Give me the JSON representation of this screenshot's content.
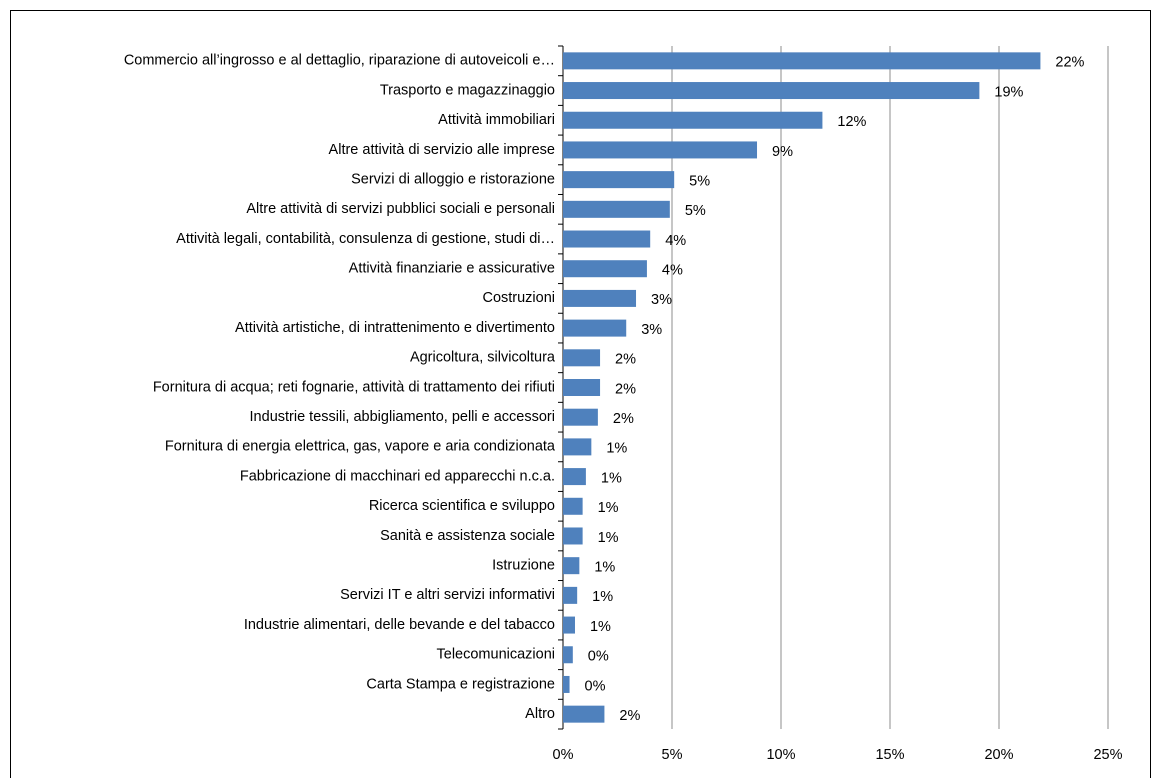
{
  "chart_data": {
    "type": "bar",
    "orientation": "horizontal",
    "categories": [
      "Commercio all’ingrosso e al dettaglio, riparazione di autoveicoli e…",
      "Trasporto e magazzinaggio",
      "Attività immobiliari",
      "Altre attività di servizio alle imprese",
      "Servizi di alloggio e ristorazione",
      "Altre attività di servizi pubblici sociali e personali",
      "Attività legali, contabilità, consulenza di gestione, studi di…",
      "Attività finanziarie e assicurative",
      "Costruzioni",
      "Attività artistiche, di intrattenimento e divertimento",
      "Agricoltura, silvicoltura",
      "Fornitura di acqua; reti fognarie, attività di trattamento dei rifiuti",
      "Industrie tessili, abbigliamento, pelli e accessori",
      "Fornitura di energia elettrica, gas, vapore e aria condizionata",
      "Fabbricazione di macchinari ed apparecchi n.c.a.",
      "Ricerca scientifica e sviluppo",
      "Sanità e assistenza sociale",
      "Istruzione",
      "Servizi IT e altri servizi informativi",
      "Industrie alimentari, delle bevande e del tabacco",
      "Telecomunicazioni",
      "Carta Stampa e registrazione",
      "Altro"
    ],
    "values": [
      21.9,
      19.1,
      11.9,
      8.9,
      5.1,
      4.9,
      4.0,
      3.85,
      3.35,
      2.9,
      1.7,
      1.7,
      1.6,
      1.3,
      1.05,
      0.9,
      0.9,
      0.75,
      0.65,
      0.55,
      0.45,
      0.3,
      1.9
    ],
    "value_labels": [
      "22%",
      "19%",
      "12%",
      "9%",
      "5%",
      "5%",
      "4%",
      "4%",
      "3%",
      "3%",
      "2%",
      "2%",
      "2%",
      "1%",
      "1%",
      "1%",
      "1%",
      "1%",
      "1%",
      "1%",
      "0%",
      "0%",
      "2%"
    ],
    "color": "#4f81bd",
    "xlim": [
      0,
      25
    ],
    "xticks": [
      {
        "value": 0,
        "label": "0%"
      },
      {
        "value": 5,
        "label": "5%"
      },
      {
        "value": 10,
        "label": "10%"
      },
      {
        "value": 15,
        "label": "15%"
      },
      {
        "value": 20,
        "label": "20%"
      },
      {
        "value": 25,
        "label": "25%"
      }
    ],
    "grid": true
  }
}
